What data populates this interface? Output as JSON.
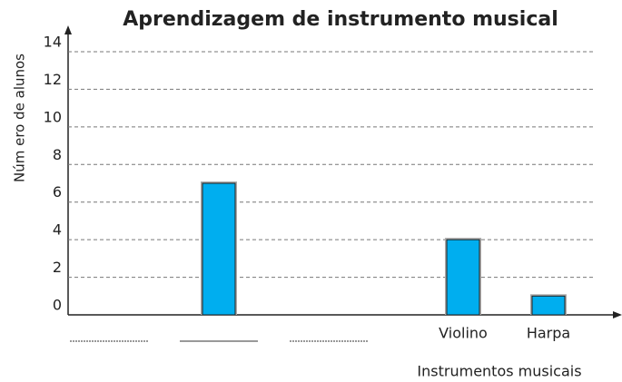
{
  "chart_data": {
    "type": "bar",
    "title": "Aprendizagem de instrumento musical",
    "x_label": "Instrumentos musicais",
    "y_label": "Núm ero de alunos",
    "categories": [
      null,
      null,
      null,
      "Violino",
      "Harpa"
    ],
    "values": [
      null,
      7,
      null,
      4,
      1
    ],
    "color": "#00aeef",
    "ylim": [
      0,
      14
    ],
    "yticks": [
      0,
      2,
      4,
      6,
      8,
      10,
      12,
      14
    ],
    "grid": true
  }
}
